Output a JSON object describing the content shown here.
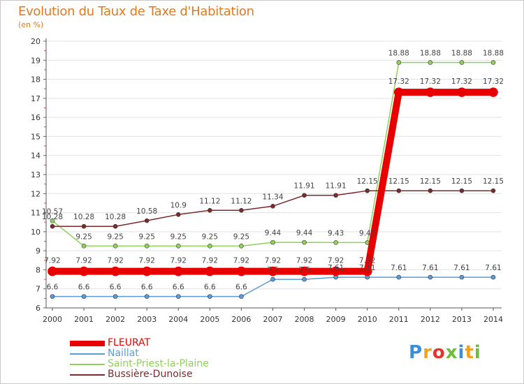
{
  "chart_data": {
    "type": "line",
    "title": "Evolution du Taux de Taxe d'Habitation",
    "subtitle": "(en %)",
    "x": [
      "2000",
      "2001",
      "2002",
      "2003",
      "2004",
      "2005",
      "2006",
      "2007",
      "2008",
      "2009",
      "2010",
      "2011",
      "2012",
      "2013",
      "2014"
    ],
    "ylim": [
      6,
      20
    ],
    "yticks": [
      6,
      7,
      8,
      9,
      10,
      11,
      12,
      13,
      14,
      15,
      16,
      17,
      18,
      19,
      20
    ],
    "grid": "horizontal",
    "legend_position": "bottom-left",
    "series": [
      {
        "name": "FLEURAT",
        "color": "#e80000",
        "emphasis": true,
        "values": [
          7.92,
          7.92,
          7.92,
          7.92,
          7.92,
          7.92,
          7.92,
          7.92,
          7.92,
          7.92,
          7.92,
          17.32,
          17.32,
          17.32,
          17.32
        ],
        "labels": [
          "7.92",
          "7.92",
          "7.92",
          "7.92",
          "7.92",
          "7.92",
          "7.92",
          "7.92",
          "7.92",
          "7.92",
          "7.92",
          "17.32",
          "17.32",
          "17.32",
          "17.32"
        ]
      },
      {
        "name": "Naillat",
        "color": "#5b9bd5",
        "emphasis": false,
        "values": [
          6.6,
          6.6,
          6.6,
          6.6,
          6.6,
          6.6,
          6.6,
          7.5,
          7.5,
          7.61,
          7.61,
          7.61,
          7.61,
          7.61,
          7.61
        ],
        "labels": [
          "6.6",
          "6.6",
          "6.6",
          "6.6",
          "6.6",
          "6.6",
          "6.6",
          "7.5",
          "7.5",
          "7.61",
          "7.61",
          "7.61",
          "7.61",
          "7.61",
          "7.61"
        ]
      },
      {
        "name": "Saint-Priest-la-Plaine",
        "color": "#8fd15a",
        "emphasis": false,
        "values": [
          10.57,
          9.25,
          9.25,
          9.25,
          9.25,
          9.25,
          9.25,
          9.44,
          9.44,
          9.43,
          9.43,
          18.88,
          18.88,
          18.88,
          18.88
        ],
        "labels": [
          "10.57",
          "9.25",
          "9.25",
          "9.25",
          "9.25",
          "9.25",
          "9.25",
          "9.44",
          "9.44",
          "9.43",
          "9.43",
          "18.88",
          "18.88",
          "18.88",
          "18.88"
        ]
      },
      {
        "name": "Bussière-Dunoise",
        "color": "#7a2a2a",
        "emphasis": false,
        "values": [
          10.28,
          10.28,
          10.28,
          10.58,
          10.9,
          11.12,
          11.12,
          11.34,
          11.91,
          11.91,
          12.15,
          12.15,
          12.15,
          12.15,
          12.15
        ],
        "labels": [
          "10.28",
          "10.28",
          "10.28",
          "10.58",
          "10.9",
          "11.12",
          "11.12",
          "11.34",
          "11.91",
          "11.91",
          "12.15",
          "12.15",
          "12.15",
          "12.15",
          "12.15"
        ]
      }
    ]
  },
  "logo": {
    "text": "Proxiti",
    "letters": [
      {
        "ch": "P",
        "color": "#3a8fd6"
      },
      {
        "ch": "r",
        "color": "#f4a11b"
      },
      {
        "ch": "o",
        "color": "#e5342a"
      },
      {
        "ch": "x",
        "color": "#6cbf3a"
      },
      {
        "ch": "i",
        "color": "#3a8fd6"
      },
      {
        "ch": "t",
        "color": "#f4a11b"
      },
      {
        "ch": "i",
        "color": "#6cbf3a"
      }
    ]
  }
}
